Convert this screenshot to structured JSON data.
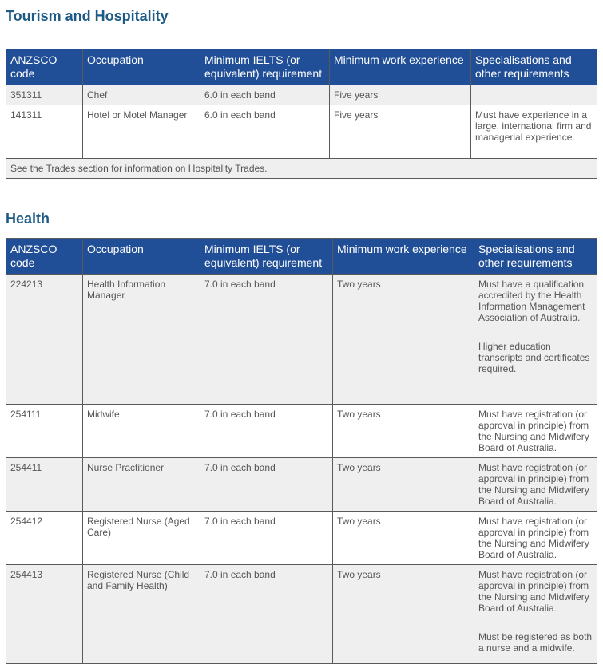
{
  "sections": [
    {
      "title": "Tourism and Hospitality",
      "table": {
        "header": [
          "ANZSCO code",
          "Occupation",
          "Minimum IELTS (or equivalent) requirement",
          "Minimum work experience",
          "Specialisations and other requirements"
        ],
        "rows": [
          [
            "351311",
            "Chef",
            "6.0 in each band",
            "Five years"
          ],
          [
            "141311",
            "Hotel or Motel Manager",
            "6.0 in each band",
            "Five years",
            "Must have experience in a large, international firm and managerial experience."
          ]
        ],
        "footer": "See the Trades section for information on Hospitality Trades."
      }
    },
    {
      "title": "Health",
      "table": {
        "header": [
          "ANZSCO code",
          "Occupation",
          "Minimum IELTS (or equivalent) requirement",
          "Minimum work experience",
          "Specialisations and other requirements"
        ],
        "rows": [
          [
            "224213",
            "Health Information Manager",
            "7.0 in each band",
            "Two years",
            [
              "Must have a qualification accredited by the Health Information Management Association of Australia.",
              "Higher education transcripts and certificates required."
            ]
          ],
          [
            "254111",
            "Midwife",
            "7.0 in each band",
            "Two years",
            "Must have registration (or approval in principle) from the Nursing and Midwifery Board of Australia."
          ],
          [
            "254411",
            "Nurse Practitioner",
            "7.0 in each band",
            "Two years",
            "Must have registration (or approval in principle) from the Nursing and Midwifery Board of Australia."
          ],
          [
            "254412",
            "Registered Nurse (Aged Care)",
            "7.0 in each band",
            "Two years",
            "Must have registration (or approval in principle) from the Nursing and Midwifery Board of Australia."
          ],
          [
            "254413",
            "Registered Nurse (Child and Family Health)",
            "7.0 in each band",
            "Two years",
            [
              "Must have registration (or approval in principle) from the Nursing and Midwifery Board of Australia.",
              "Must be registered as both a nurse and a midwife."
            ]
          ]
        ]
      }
    }
  ]
}
